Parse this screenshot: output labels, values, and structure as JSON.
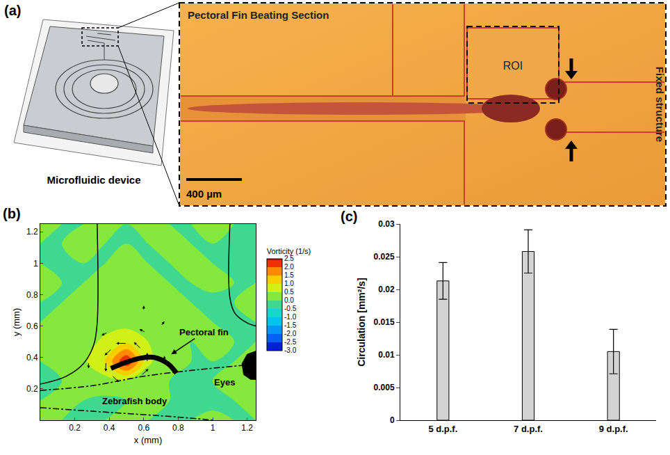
{
  "diagram": {
    "label": "(a)",
    "device_label": "Microfluidic device",
    "image_title": "Pectoral Fin Beating Section",
    "roi_label": "ROI",
    "structure_label": "Fixed structure",
    "scale_bar": "400 µm"
  },
  "chart_data": [
    {
      "type": "contour",
      "label": "(b)",
      "xlabel": "x (mm)",
      "ylabel": "y (mm)",
      "xlim": [
        0,
        1.25
      ],
      "ylim": [
        0,
        1.25
      ],
      "xticks": [
        0.2,
        0.4,
        0.6,
        0.8,
        1,
        1.2
      ],
      "yticks": [
        0.2,
        0.4,
        0.6,
        0.8,
        1,
        1.2
      ],
      "x": [
        0,
        0.125,
        0.25,
        0.375,
        0.5,
        0.625,
        0.75,
        0.875,
        1,
        1.125,
        1.25
      ],
      "y": [
        0,
        0.125,
        0.25,
        0.375,
        0.5,
        0.625,
        0.75,
        0.875,
        1,
        1.125,
        1.25
      ],
      "z": [
        [
          0.1,
          0,
          -0.1,
          0,
          0.1,
          0,
          -0.1,
          0,
          0.1,
          0,
          0
        ],
        [
          0,
          0.1,
          0,
          -0.1,
          0,
          0.1,
          0,
          0,
          -0.1,
          0,
          0.1
        ],
        [
          0,
          0,
          0.2,
          0.3,
          0.4,
          0.2,
          0,
          -0.2,
          0,
          0.1,
          0
        ],
        [
          0,
          0.1,
          0.4,
          1.0,
          2.5,
          0.6,
          0.1,
          0,
          0,
          0,
          0.1
        ],
        [
          0.1,
          0,
          0.3,
          0.6,
          0.9,
          0.5,
          0.2,
          0,
          0.1,
          0,
          0
        ],
        [
          0,
          0.2,
          0.1,
          0.3,
          0.3,
          0.2,
          0,
          0.1,
          0,
          -0.1,
          0
        ],
        [
          0,
          0,
          0.1,
          0,
          0.2,
          0,
          0.1,
          0,
          -0.1,
          0,
          0.1
        ],
        [
          0.1,
          0,
          0,
          0.1,
          0,
          0.1,
          0,
          0,
          0.1,
          0,
          0
        ],
        [
          0,
          -0.1,
          0,
          0,
          0.1,
          0,
          0,
          0.1,
          0,
          0,
          0
        ],
        [
          0,
          0,
          0.1,
          0,
          0,
          0,
          0.1,
          0,
          0,
          -0.1,
          0
        ],
        [
          0.1,
          0,
          0,
          0.1,
          0,
          0.1,
          0,
          0,
          0.1,
          0,
          0
        ]
      ],
      "colorbar": {
        "title": "Vorticity (1/s)",
        "zlim": [
          -3,
          2.5
        ],
        "zticks": [
          2.5,
          {
            "value": 2,
            "label": "2.0"
          },
          1.5,
          {
            "value": 1,
            "label": "1.0"
          },
          0.5,
          {
            "value": 0,
            "label": "0.0"
          },
          -0.5,
          {
            "value": -1,
            "label": "-1.0"
          },
          -1.5,
          {
            "value": -2,
            "label": "-2.0"
          },
          -2.5,
          {
            "value": -3,
            "label": "-3.0"
          }
        ]
      },
      "vectors": [
        {
          "x": 0.62,
          "y": 0.37,
          "u": 0,
          "v": 0.06
        },
        {
          "x": 0.585,
          "y": 0.455,
          "u": -0.042,
          "v": 0.042
        },
        {
          "x": 0.5,
          "y": 0.49,
          "u": -0.06,
          "v": 0
        },
        {
          "x": 0.415,
          "y": 0.455,
          "u": -0.042,
          "v": -0.042
        },
        {
          "x": 0.38,
          "y": 0.37,
          "u": 0,
          "v": -0.06
        },
        {
          "x": 0.415,
          "y": 0.285,
          "u": 0.042,
          "v": -0.042
        },
        {
          "x": 0.585,
          "y": 0.285,
          "u": 0.042,
          "v": 0.042
        },
        {
          "x": 0.72,
          "y": 0.37,
          "u": 0,
          "v": 0.04
        },
        {
          "x": 0.61,
          "y": 0.56,
          "u": -0.035,
          "v": 0.02
        },
        {
          "x": 0.39,
          "y": 0.56,
          "u": -0.035,
          "v": -0.02
        },
        {
          "x": 0.28,
          "y": 0.37,
          "u": 0,
          "v": -0.04
        },
        {
          "x": 0.7,
          "y": 0.6,
          "u": 0.02,
          "v": 0.03
        },
        {
          "x": 0.6,
          "y": 0.7,
          "u": 0,
          "v": 0.03
        }
      ],
      "outlines": [
        {
          "type": "line",
          "line_style": "solid",
          "color": "#000000",
          "x": [
            0.33,
            0.33,
            0.31,
            0.25,
            0.15,
            0
          ],
          "y": [
            1.25,
            0.62,
            0.48,
            0.36,
            0.28,
            0.23
          ]
        },
        {
          "type": "line",
          "line_style": "solid",
          "color": "#000000",
          "x": [
            1.1,
            1.1,
            1.13,
            1.2,
            1.25
          ],
          "y": [
            1.25,
            0.78,
            0.68,
            0.62,
            0.6
          ]
        },
        {
          "type": "line",
          "line_style": "dashdot",
          "color": "#000000",
          "x": [
            0,
            0.3,
            0.6,
            0.9,
            1.18
          ],
          "y": [
            0.19,
            0.22,
            0.28,
            0.32,
            0.35
          ]
        },
        {
          "type": "line",
          "line_style": "dashdot",
          "color": "#000000",
          "x": [
            0,
            0.4,
            0.8,
            1.0
          ],
          "y": [
            0.08,
            0.05,
            0.02,
            0
          ]
        },
        {
          "type": "line",
          "line_style": "thick",
          "color": "#000000",
          "x": [
            0.41,
            0.5,
            0.58,
            0.66,
            0.74,
            0.79
          ],
          "y": [
            0.33,
            0.37,
            0.395,
            0.4,
            0.36,
            0.3
          ]
        },
        {
          "type": "area",
          "color": "#000000",
          "x": [
            1.25,
            1.2,
            1.17,
            1.18,
            1.22,
            1.25
          ],
          "y": [
            0.44,
            0.42,
            0.36,
            0.29,
            0.26,
            0.26
          ]
        }
      ],
      "annotations": [
        {
          "text": "Pectoral fin",
          "x": 0.95,
          "y": 0.56,
          "arrow_to": [
            0.76,
            0.42
          ]
        },
        {
          "text": "Eyes",
          "x": 1.07,
          "y": 0.24
        },
        {
          "text": "Zebrafish body",
          "x": 0.55,
          "y": 0.12
        }
      ]
    },
    {
      "type": "bar",
      "label": "(c)",
      "ylabel": "Circulation [mm²/s]",
      "categories": [
        "5 d.p.f.",
        "7 d.p.f.",
        "9 d.p.f."
      ],
      "values": [
        0.0213,
        0.0258,
        0.0105
      ],
      "errors": [
        0.0028,
        0.0033,
        0.0034
      ],
      "color": "#d3d3d3",
      "ylim": [
        0,
        0.03
      ],
      "yticks": [
        0,
        0.005,
        0.01,
        0.015,
        0.02,
        0.025,
        0.03
      ]
    }
  ]
}
